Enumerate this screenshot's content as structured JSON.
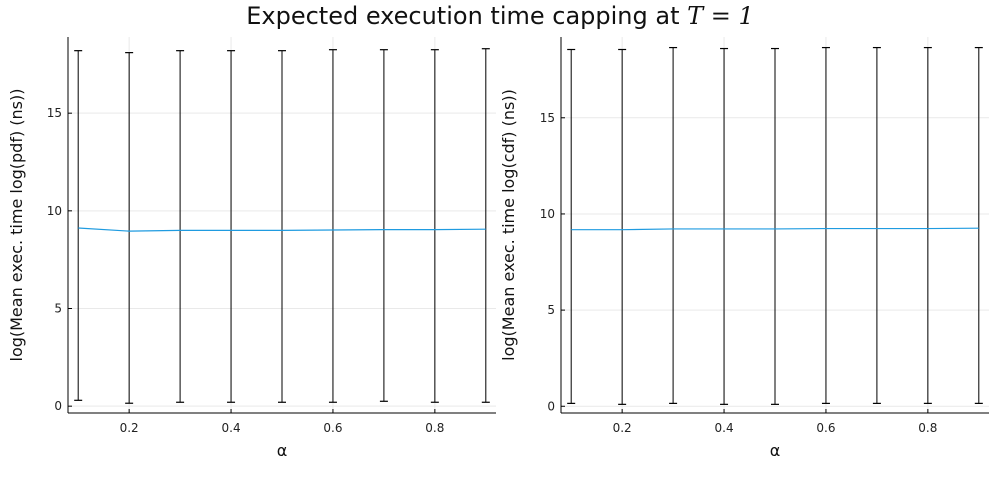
{
  "title": {
    "text": "Expected execution time capping at ",
    "math": "T = 1"
  },
  "colors": {
    "line": "#1f9be0",
    "errorbar": "#000000",
    "grid": "#e9e9e9",
    "axis": "#000000"
  },
  "chart_data": [
    {
      "type": "line",
      "xlabel": "α",
      "ylabel": "log(Mean exec. time log(pdf) (ns))",
      "xlim": [
        0.08,
        0.92
      ],
      "ylim": [
        -0.35,
        18.9
      ],
      "xticks": [
        0.2,
        0.4,
        0.6,
        0.8
      ],
      "xtick_labels": [
        "0.2",
        "0.4",
        "0.6",
        "0.8"
      ],
      "yticks": [
        0,
        5,
        10,
        15
      ],
      "ytick_labels": [
        "0",
        "5",
        "10",
        "15"
      ],
      "grid": true,
      "legend": "none",
      "x": [
        0.1,
        0.2,
        0.3,
        0.4,
        0.5,
        0.6,
        0.7,
        0.8,
        0.9
      ],
      "y": [
        9.12,
        8.96,
        9.0,
        9.0,
        9.0,
        9.02,
        9.04,
        9.04,
        9.06
      ],
      "err_low": [
        0.3,
        0.15,
        0.2,
        0.2,
        0.2,
        0.2,
        0.25,
        0.2,
        0.2
      ],
      "err_high": [
        18.2,
        18.1,
        18.2,
        18.2,
        18.2,
        18.25,
        18.25,
        18.25,
        18.3
      ]
    },
    {
      "type": "line",
      "xlabel": "α",
      "ylabel": "log(Mean exec. time log(cdf) (ns))",
      "xlim": [
        0.08,
        0.92
      ],
      "ylim": [
        -0.35,
        19.2
      ],
      "xticks": [
        0.2,
        0.4,
        0.6,
        0.8
      ],
      "xtick_labels": [
        "0.2",
        "0.4",
        "0.6",
        "0.8"
      ],
      "yticks": [
        0,
        5,
        10,
        15
      ],
      "ytick_labels": [
        "0",
        "5",
        "10",
        "15"
      ],
      "grid": true,
      "legend": "none",
      "x": [
        0.1,
        0.2,
        0.3,
        0.4,
        0.5,
        0.6,
        0.7,
        0.8,
        0.9
      ],
      "y": [
        9.18,
        9.18,
        9.22,
        9.22,
        9.22,
        9.24,
        9.24,
        9.24,
        9.26
      ],
      "err_low": [
        0.15,
        0.1,
        0.15,
        0.1,
        0.1,
        0.15,
        0.15,
        0.15,
        0.15
      ],
      "err_high": [
        18.55,
        18.55,
        18.65,
        18.6,
        18.6,
        18.65,
        18.65,
        18.65,
        18.65
      ]
    }
  ]
}
